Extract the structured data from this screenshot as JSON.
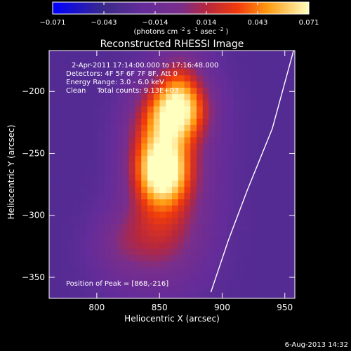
{
  "chart_data": {
    "type": "heatmap",
    "title": "Reconstructed RHESSI Image",
    "xlabel": "Heliocentric X (arcsec)",
    "ylabel": "Heliocentric Y (arcsec)",
    "xlim": [
      762,
      958
    ],
    "ylim": [
      -367,
      -167
    ],
    "xticks": [
      800,
      850,
      900,
      950
    ],
    "yticks": [
      -200,
      -250,
      -300,
      -350
    ],
    "colorbar": {
      "min": -0.071,
      "max": 0.071,
      "ticks": [
        "-0.071",
        "-0.043",
        "-0.014",
        "0.014",
        "0.043",
        "0.071"
      ],
      "unit_parts": [
        "(photons cm",
        "-2",
        " s",
        "-1",
        " asec",
        "-2",
        ")"
      ]
    },
    "annotations": [
      "2-Apr-2011 17:14:00.000 to 17:16:48.000",
      "Detectors: 4F 5F 6F 7F 8F, Att 0",
      "Energy Range: 3.0 - 6.0 keV",
      "Clean     Total counts: 9.13E+03",
      "Position of Peak = [868,-216]"
    ],
    "peak": {
      "x": 868,
      "y": -216
    },
    "sources": [
      {
        "x": 866,
        "y": -214,
        "amplitude": 0.071,
        "sigma_x": 16,
        "sigma_y": 18
      },
      {
        "x": 853,
        "y": -266,
        "amplitude": 0.066,
        "sigma_x": 15,
        "sigma_y": 18
      },
      {
        "x": 846,
        "y": -240,
        "amplitude": 0.05,
        "sigma_x": 18,
        "sigma_y": 30
      },
      {
        "x": 872,
        "y": -250,
        "amplitude": 0.022,
        "sigma_x": 22,
        "sigma_y": 60
      },
      {
        "x": 848,
        "y": -305,
        "amplitude": 0.03,
        "sigma_x": 22,
        "sigma_y": 25
      },
      {
        "x": 838,
        "y": -335,
        "amplitude": 0.018,
        "sigma_x": 28,
        "sigma_y": 25
      },
      {
        "x": 866,
        "y": -185,
        "amplitude": 0.018,
        "sigma_x": 12,
        "sigma_y": 16
      },
      {
        "x": 815,
        "y": -320,
        "amplitude": 0.012,
        "sigma_x": 14,
        "sigma_y": 18
      }
    ],
    "background": -0.03,
    "limb_curve": [
      {
        "x": 957,
        "y": -167
      },
      {
        "x": 940,
        "y": -230
      },
      {
        "x": 920,
        "y": -280
      },
      {
        "x": 905,
        "y": -320
      },
      {
        "x": 891,
        "y": -362
      }
    ]
  },
  "footer": {
    "timestamp": "6-Aug-2013 14:32"
  }
}
